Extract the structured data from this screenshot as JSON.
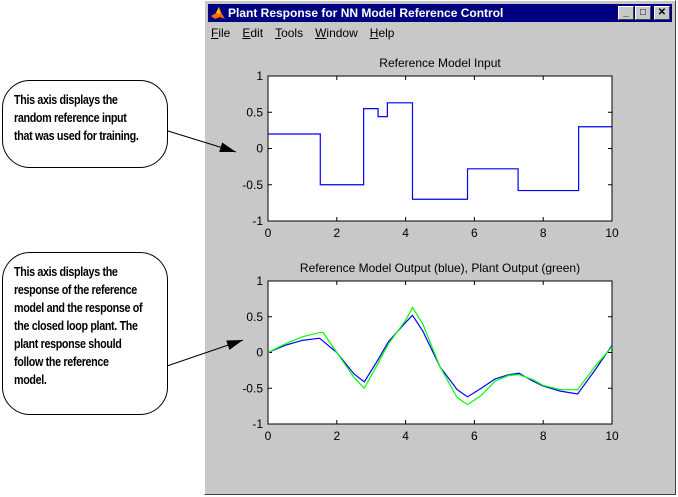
{
  "window": {
    "title": "Plant Response for NN Model Reference Control",
    "icon": "matlab-logo-icon",
    "controls": [
      "minimize",
      "maximize",
      "close"
    ]
  },
  "menu": [
    {
      "label": "File",
      "key": "F"
    },
    {
      "label": "Edit",
      "key": "E"
    },
    {
      "label": "Tools",
      "key": "T"
    },
    {
      "label": "Window",
      "key": "W"
    },
    {
      "label": "Help",
      "key": "H"
    }
  ],
  "callouts": [
    {
      "lines": [
        "This axis displays the",
        "random reference input",
        "that was used for training."
      ]
    },
    {
      "lines": [
        "This axis displays the",
        "response of the reference",
        "model and the response of",
        "the closed loop plant. The",
        "plant response should",
        "follow the reference",
        "model."
      ]
    }
  ],
  "chart_data": [
    {
      "type": "line",
      "title": "Reference Model Input",
      "xlim": [
        0,
        10
      ],
      "ylim": [
        -1,
        1
      ],
      "xticks": [
        0,
        2,
        4,
        6,
        8,
        10
      ],
      "yticks": [
        -1,
        -0.5,
        0,
        0.5,
        1
      ],
      "grid": false,
      "series": [
        {
          "color": "#0000ff",
          "step": true,
          "x": [
            0,
            1.52,
            2.78,
            3.2,
            3.47,
            4.2,
            5.8,
            7.27,
            9.03,
            10
          ],
          "y": [
            0.2,
            -0.5,
            0.55,
            0.44,
            0.63,
            -0.7,
            -0.28,
            -0.58,
            0.3,
            0.3
          ]
        }
      ]
    },
    {
      "type": "line",
      "title": "Reference Model Output (blue), Plant Output (green)",
      "xlim": [
        0,
        10
      ],
      "ylim": [
        -1,
        1
      ],
      "xticks": [
        0,
        2,
        4,
        6,
        8,
        10
      ],
      "yticks": [
        -1,
        -0.5,
        0,
        0.5,
        1
      ],
      "grid": false,
      "series": [
        {
          "color": "#0000ff",
          "x": [
            0,
            0.5,
            1,
            1.5,
            2,
            2.5,
            2.8,
            3.2,
            3.5,
            4,
            4.2,
            4.5,
            5,
            5.5,
            5.8,
            6.2,
            6.6,
            7,
            7.3,
            7.7,
            8,
            8.5,
            9,
            9.5,
            10
          ],
          "y": [
            0,
            0.1,
            0.17,
            0.2,
            0,
            -0.3,
            -0.41,
            -0.1,
            0.15,
            0.42,
            0.52,
            0.3,
            -0.2,
            -0.52,
            -0.62,
            -0.5,
            -0.37,
            -0.31,
            -0.29,
            -0.4,
            -0.47,
            -0.54,
            -0.58,
            -0.25,
            0.1
          ]
        },
        {
          "color": "#00ff00",
          "x": [
            0,
            0.5,
            1,
            1.5,
            1.6,
            2,
            2.5,
            2.8,
            3.2,
            3.5,
            4,
            4.2,
            4.5,
            5,
            5.5,
            5.8,
            6.2,
            6.6,
            7,
            7.3,
            7.7,
            8,
            8.5,
            9,
            9.5,
            10
          ],
          "y": [
            0,
            0.12,
            0.22,
            0.28,
            0.28,
            0,
            -0.35,
            -0.5,
            -0.15,
            0.12,
            0.45,
            0.63,
            0.4,
            -0.2,
            -0.63,
            -0.73,
            -0.6,
            -0.4,
            -0.32,
            -0.31,
            -0.38,
            -0.46,
            -0.52,
            -0.52,
            -0.2,
            0.08
          ]
        }
      ]
    }
  ]
}
